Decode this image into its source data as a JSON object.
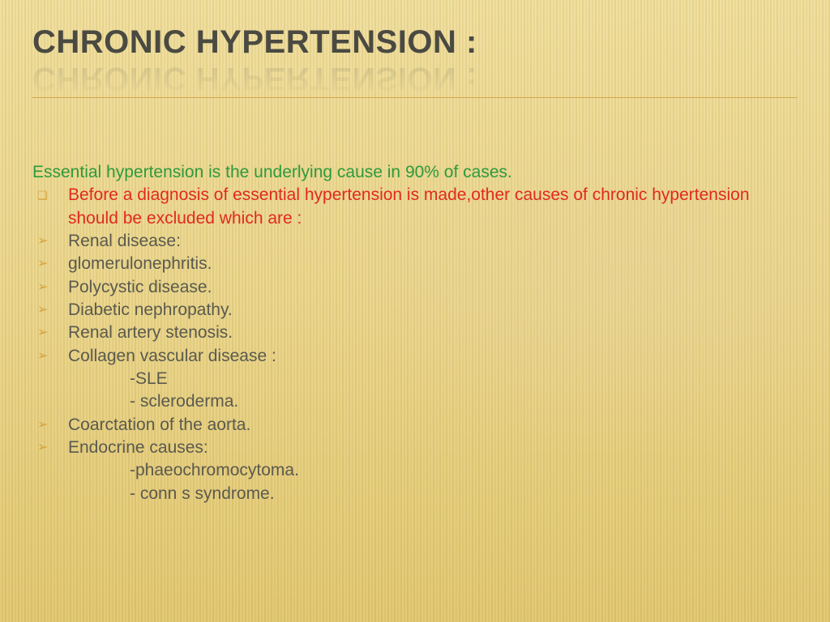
{
  "colors": {
    "title": "#4a4a42",
    "divider": "#d3a84a",
    "intro": "#2e9a3c",
    "emphasis": "#e02a1f",
    "body": "#5a5a4e",
    "bullet": "#d7a23e",
    "bg_light": "#f7eec8",
    "bg_dark": "#ead898"
  },
  "typography": {
    "title_fontsize": 40,
    "body_fontsize": 21,
    "font_family": "Arial"
  },
  "slide": {
    "title": "CHRONIC HYPERTENSION :",
    "intro": "Essential hypertension is the underlying cause in 90% of cases.",
    "emphasis": "Before a diagnosis of essential hypertension is made,other causes of chronic hypertension should be excluded which are :",
    "items": [
      "Renal disease:",
      "glomerulonephritis.",
      "Polycystic disease.",
      "Diabetic nephropathy.",
      "Renal artery stenosis.",
      " Collagen  vascular disease :"
    ],
    "sub1": [
      "-SLE",
      "- scleroderma."
    ],
    "items2": [
      "Coarctation of the aorta.",
      " Endocrine causes:"
    ],
    "sub2": [
      "-phaeochromocytoma.",
      " - conn s syndrome."
    ]
  },
  "glyphs": {
    "square": "❑",
    "arrow": "➢"
  }
}
